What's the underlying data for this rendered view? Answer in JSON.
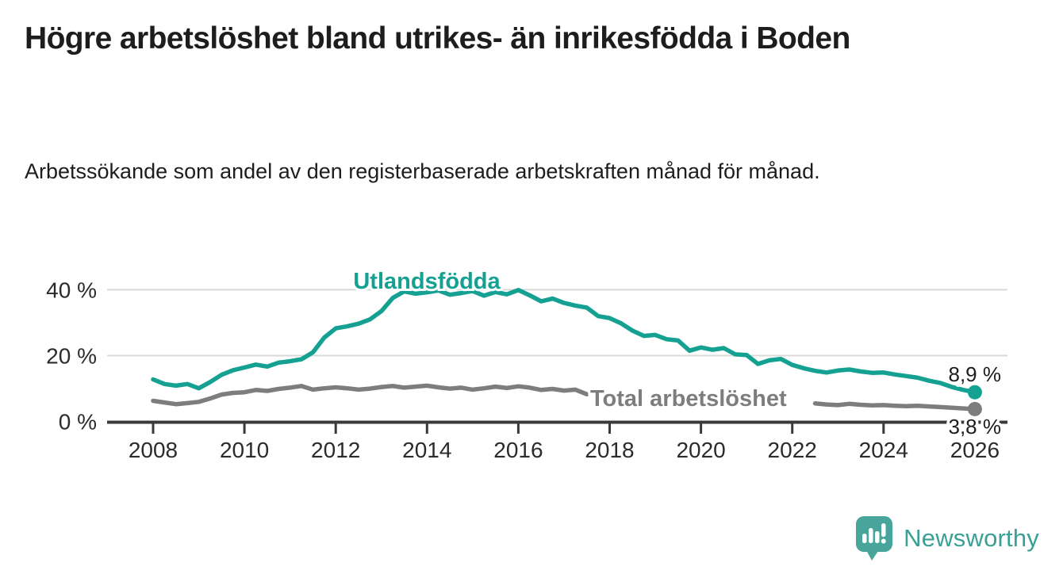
{
  "header": {
    "title": "Högre arbetslöshet bland utrikes- än inrikesfödda i Boden",
    "subtitle": "Arbetssökande som andel av den registerbaserade arbetskraften månad för månad."
  },
  "footer": {
    "brand": "Newsworthy"
  },
  "colors": {
    "teal": "#14a192",
    "gray": "#7d7d7d",
    "axis": "#3a3a3a",
    "grid": "#d9d9d9",
    "text": "#1d1d1b",
    "tick_text": "#2b2b2b",
    "logo_bubble": "#47a59b",
    "logo_text": "#3aa096"
  },
  "chart_data": {
    "type": "line",
    "x_start": 2008,
    "x_step": 0.25,
    "xlim": [
      2007,
      2026.8
    ],
    "ylim": [
      0,
      44
    ],
    "grid": "horizontal-only",
    "gridlines": [
      20,
      40
    ],
    "legend_position": "inline-labels-on-lines",
    "x_ticks": [
      2008,
      2010,
      2012,
      2014,
      2016,
      2018,
      2020,
      2022,
      2024,
      2026
    ],
    "y_ticks": [
      {
        "value": 0,
        "label": "0 %"
      },
      {
        "value": 20,
        "label": "20 %"
      },
      {
        "value": 40,
        "label": "40 %"
      }
    ],
    "series": [
      {
        "name": "Utlandsfödda",
        "color": "#14a192",
        "end_label": "8,9 %",
        "end_value": 8.9,
        "values": [
          12.8,
          11.4,
          10.9,
          11.4,
          10.1,
          12.0,
          14.2,
          15.6,
          16.4,
          17.3,
          16.7,
          17.9,
          18.3,
          18.9,
          21.0,
          25.5,
          28.3,
          28.9,
          29.7,
          31.0,
          33.5,
          37.5,
          39.5,
          38.8,
          39.2,
          39.8,
          38.5,
          39.0,
          39.6,
          38.2,
          39.3,
          38.6,
          39.9,
          38.3,
          36.5,
          37.3,
          36.0,
          35.2,
          34.6,
          32.0,
          31.4,
          29.8,
          27.6,
          26.0,
          26.3,
          25.0,
          24.6,
          21.5,
          22.5,
          21.8,
          22.3,
          20.4,
          20.2,
          17.5,
          18.6,
          19.0,
          17.2,
          16.2,
          15.4,
          14.9,
          15.5,
          15.8,
          15.2,
          14.8,
          14.9,
          14.3,
          13.8,
          13.3,
          12.4,
          11.7,
          10.5,
          9.6,
          8.9
        ]
      },
      {
        "name": "Total arbetslöshet",
        "color": "#7d7d7d",
        "end_label": "3,8 %",
        "end_value": 3.8,
        "values": [
          6.3,
          5.8,
          5.3,
          5.6,
          6.0,
          7.0,
          8.2,
          8.7,
          8.9,
          9.6,
          9.3,
          9.9,
          10.3,
          10.8,
          9.7,
          10.1,
          10.4,
          10.1,
          9.7,
          10.0,
          10.5,
          10.8,
          10.3,
          10.6,
          10.9,
          10.4,
          10.0,
          10.3,
          9.7,
          10.1,
          10.6,
          10.2,
          10.7,
          10.3,
          9.6,
          9.9,
          9.4,
          9.7,
          8.3,
          null,
          null,
          null,
          null,
          null,
          null,
          null,
          null,
          null,
          null,
          null,
          null,
          null,
          null,
          null,
          null,
          null,
          null,
          null,
          5.5,
          5.2,
          5.0,
          5.4,
          5.1,
          4.9,
          5.0,
          4.8,
          4.7,
          4.8,
          4.6,
          4.4,
          4.2,
          4.0,
          3.8
        ]
      }
    ]
  }
}
